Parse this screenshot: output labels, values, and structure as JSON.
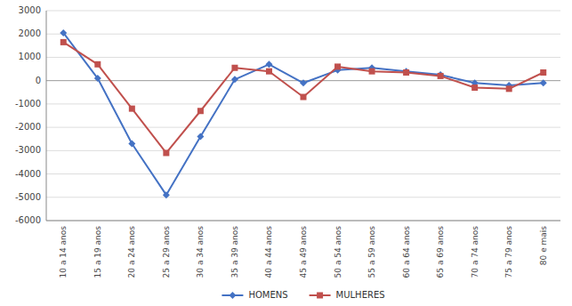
{
  "chart_data": {
    "type": "line",
    "categories": [
      "10 a 14 anos",
      "15 a 19 anos",
      "20 a 24 anos",
      "25 a 29 anos",
      "30 a 34 anos",
      "35 a 39 anos",
      "40 a 44 anos",
      "45 a 49 anos",
      "50 a 54 anos",
      "55 a 59 anos",
      "60 a 64 anos",
      "65 a 69 anos",
      "70 a 74 anos",
      "75 a 79 anos",
      "80 e mais"
    ],
    "series": [
      {
        "name": "HOMENS",
        "color": "#4472C4",
        "marker": "diamond",
        "values": [
          2050,
          100,
          -2700,
          -4900,
          -2400,
          50,
          700,
          -100,
          450,
          550,
          400,
          250,
          -100,
          -200,
          -100
        ]
      },
      {
        "name": "MULHERES",
        "color": "#C0504D",
        "marker": "square",
        "values": [
          1650,
          700,
          -1200,
          -3100,
          -1300,
          550,
          400,
          -700,
          600,
          400,
          350,
          200,
          -300,
          -350,
          350
        ]
      }
    ],
    "ylim": [
      -6000,
      3000
    ],
    "yticks": [
      -6000,
      -5000,
      -4000,
      -3000,
      -2000,
      -1000,
      0,
      1000,
      2000,
      3000
    ],
    "grid": true,
    "legend": "bottom"
  }
}
